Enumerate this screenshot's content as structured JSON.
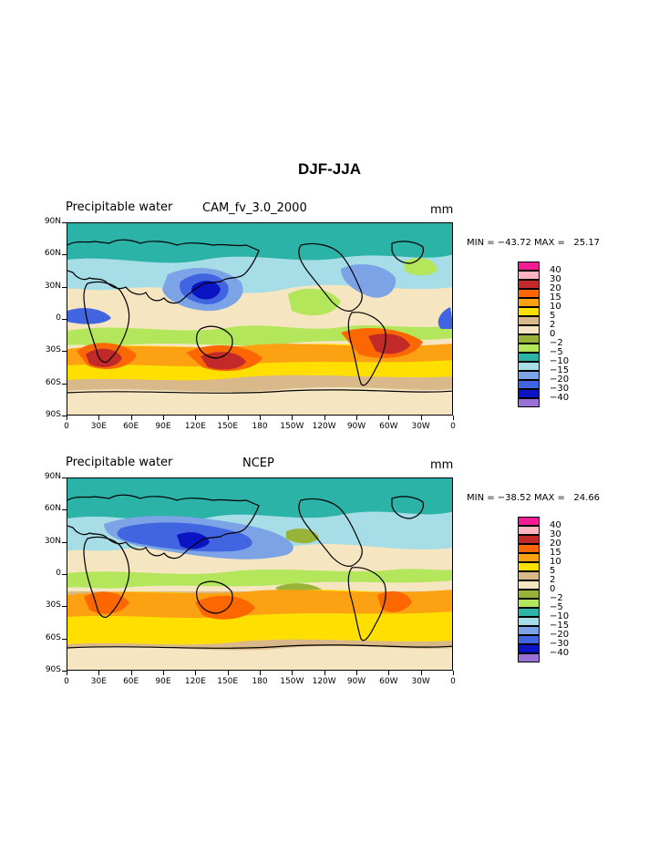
{
  "title": "DJF-JJA",
  "chart_data": [
    {
      "type": "heatmap",
      "variable": "Precipitable water",
      "source": "CAM_fv_3.0_2000",
      "units": "mm",
      "min_label": "MIN = −43.72",
      "max_label": "MAX =   25.17",
      "min": -43.72,
      "max": 25.17,
      "lat_ticks": [
        "90N",
        "60N",
        "30N",
        "0",
        "30S",
        "60S",
        "90S"
      ],
      "lon_ticks": [
        "0",
        "30E",
        "60E",
        "90E",
        "120E",
        "150E",
        "180",
        "150W",
        "120W",
        "90W",
        "60W",
        "30W",
        "0"
      ],
      "contour_levels": [
        40,
        30,
        20,
        15,
        10,
        5,
        2,
        0,
        -2,
        -5,
        -10,
        -15,
        -20,
        -30,
        -40
      ]
    },
    {
      "type": "heatmap",
      "variable": "Precipitable water",
      "source": "NCEP",
      "units": "mm",
      "min_label": "MIN = −38.52",
      "max_label": "MAX =   24.66",
      "min": -38.52,
      "max": 24.66,
      "lat_ticks": [
        "90N",
        "60N",
        "30N",
        "0",
        "30S",
        "60S",
        "90S"
      ],
      "lon_ticks": [
        "0",
        "30E",
        "60E",
        "90E",
        "120E",
        "150E",
        "180",
        "150W",
        "120W",
        "90W",
        "60W",
        "30W",
        "0"
      ],
      "contour_levels": [
        40,
        30,
        20,
        15,
        10,
        5,
        2,
        0,
        -2,
        -5,
        -10,
        -15,
        -20,
        -30,
        -40
      ]
    }
  ],
  "legend": {
    "labels": [
      "40",
      "30",
      "20",
      "15",
      "10",
      "5",
      "2",
      "0",
      "−2",
      "−5",
      "−10",
      "−15",
      "−20",
      "−30",
      "−40"
    ],
    "colors": [
      "#f51b93",
      "#fdb6c1",
      "#c22929",
      "#fd6701",
      "#fca212",
      "#ffdf00",
      "#d9b98a",
      "#f5e6c1",
      "#98b338",
      "#b4e65b",
      "#2bb3a8",
      "#a6dde6",
      "#7ba3e6",
      "#4164e0",
      "#0a14c2",
      "#9a72d6"
    ]
  }
}
